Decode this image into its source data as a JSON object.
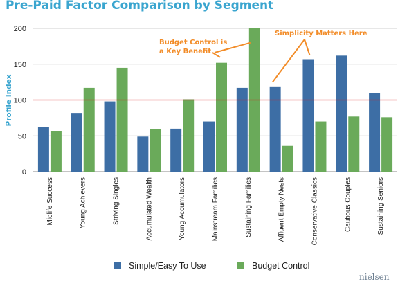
{
  "chart_data": {
    "type": "bar",
    "title": "Pre-Paid Factor Comparison by Segment",
    "ylabel": "Profile Index",
    "xlabel": "",
    "ylim": [
      0,
      200
    ],
    "yticks": [
      0,
      50,
      100,
      150,
      200
    ],
    "reference_line": 100,
    "grid": true,
    "legend_position": "bottom",
    "categories": [
      "Midlife Success",
      "Young Achievers",
      "Striving Singles",
      "Accumulated Wealth",
      "Young Accumulators",
      "Mainstream Families",
      "Sustaining Families",
      "Affluent Empty Nests",
      "Conservative Classics",
      "Cautious Couples",
      "Sustaining Seniors"
    ],
    "series": [
      {
        "name": "Simple/Easy To Use",
        "color": "#3d6ea5",
        "values": [
          62,
          82,
          98,
          49,
          60,
          70,
          117,
          119,
          157,
          162,
          110
        ]
      },
      {
        "name": "Budget Control",
        "color": "#6aaa5a",
        "values": [
          57,
          117,
          145,
          59,
          101,
          152,
          200,
          36,
          70,
          77,
          76
        ]
      }
    ],
    "annotations": [
      {
        "id": "budget",
        "lines": [
          "Budget Control is",
          "a Key Benefit"
        ],
        "points_to": [
          5,
          6
        ],
        "series": 1
      },
      {
        "id": "simplicity",
        "lines": [
          "Simplicity Matters Here"
        ],
        "points_to": [
          7,
          8
        ],
        "series": 0
      }
    ],
    "reference_line_color": "#d62020",
    "annotation_color": "#f28c28"
  },
  "brand": "nielsen"
}
